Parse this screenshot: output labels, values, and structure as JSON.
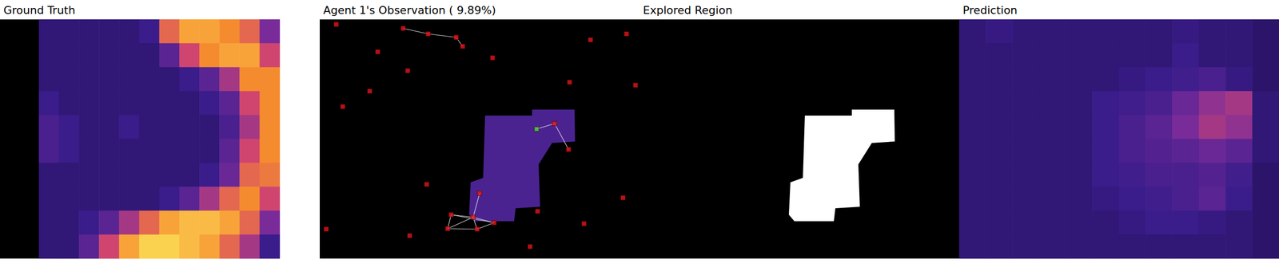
{
  "chart_data": [
    {
      "type": "heatmap",
      "title": "Ground Truth",
      "tick_labels": false,
      "value_range": [
        0,
        1
      ],
      "cells": [
        [
          0.15,
          0.15,
          0.15,
          0.15,
          0.15,
          0.2,
          0.7,
          0.85,
          0.85,
          0.8,
          0.7,
          0.4
        ],
        [
          0.15,
          0.15,
          0.15,
          0.15,
          0.15,
          0.15,
          0.3,
          0.6,
          0.8,
          0.85,
          0.85,
          0.6
        ],
        [
          0.15,
          0.15,
          0.15,
          0.15,
          0.15,
          0.15,
          0.15,
          0.2,
          0.3,
          0.5,
          0.8,
          0.8
        ],
        [
          0.2,
          0.15,
          0.15,
          0.15,
          0.15,
          0.15,
          0.15,
          0.15,
          0.2,
          0.3,
          0.6,
          0.8
        ],
        [
          0.25,
          0.2,
          0.15,
          0.15,
          0.2,
          0.15,
          0.15,
          0.15,
          0.15,
          0.25,
          0.5,
          0.8
        ],
        [
          0.25,
          0.2,
          0.15,
          0.15,
          0.15,
          0.15,
          0.15,
          0.15,
          0.15,
          0.3,
          0.6,
          0.8
        ],
        [
          0.15,
          0.15,
          0.15,
          0.15,
          0.15,
          0.15,
          0.15,
          0.15,
          0.2,
          0.35,
          0.7,
          0.75
        ],
        [
          0.15,
          0.15,
          0.15,
          0.15,
          0.15,
          0.15,
          0.2,
          0.3,
          0.5,
          0.7,
          0.8,
          0.6
        ],
        [
          0.15,
          0.15,
          0.2,
          0.3,
          0.5,
          0.7,
          0.85,
          0.9,
          0.9,
          0.85,
          0.7,
          0.4
        ],
        [
          0.15,
          0.15,
          0.3,
          0.6,
          0.85,
          0.95,
          0.95,
          0.9,
          0.85,
          0.7,
          0.5,
          0.2
        ]
      ]
    },
    {
      "type": "scatter",
      "title": "Agent 1's Observation ( 9.89%)",
      "tick_labels": false,
      "xlim": [
        0,
        640
      ],
      "ylim": [
        0,
        480
      ],
      "x": [
        33,
        167,
        217,
        273,
        286,
        116,
        346,
        542,
        614,
        176,
        500,
        632,
        100,
        46,
        470,
        434,
        498,
        214,
        320,
        607,
        263,
        307,
        349,
        256,
        315,
        436,
        529,
        13,
        180,
        421
      ],
      "y": [
        10,
        18,
        29,
        36,
        54,
        65,
        77,
        41,
        29,
        103,
        126,
        132,
        144,
        175,
        209,
        220,
        261,
        331,
        349,
        358,
        392,
        397,
        408,
        420,
        421,
        385,
        410,
        421,
        434,
        456
      ],
      "colors": [
        "#e0161b",
        "#e0161b",
        "#e0161b",
        "#e0161b",
        "#e0161b",
        "#e0161b",
        "#e0161b",
        "#e0161b",
        "#e0161b",
        "#e0161b",
        "#e0161b",
        "#e0161b",
        "#e0161b",
        "#e0161b",
        "#e0161b",
        "#3ddc3d",
        "#e0161b",
        "#e0161b",
        "#e0161b",
        "#e0161b",
        "#e0161b",
        "#e0161b",
        "#e0161b",
        "#e0161b",
        "#e0161b",
        "#e0161b",
        "#e0161b",
        "#e0161b",
        "#e0161b",
        "#e0161b"
      ],
      "links": [
        [
          1,
          2
        ],
        [
          2,
          3
        ],
        [
          3,
          4
        ],
        [
          14,
          15
        ],
        [
          14,
          16
        ],
        [
          18,
          21
        ],
        [
          20,
          21
        ],
        [
          21,
          22
        ],
        [
          23,
          21
        ],
        [
          24,
          21
        ],
        [
          20,
          23
        ],
        [
          23,
          24
        ],
        [
          24,
          22
        ],
        [
          20,
          22
        ]
      ],
      "region": [
        [
          331,
          193
        ],
        [
          425,
          193
        ],
        [
          425,
          181
        ],
        [
          510,
          181
        ],
        [
          511,
          245
        ],
        [
          465,
          248
        ],
        [
          438,
          291
        ],
        [
          441,
          376
        ],
        [
          392,
          379
        ],
        [
          389,
          405
        ],
        [
          310,
          405
        ],
        [
          299,
          392
        ],
        [
          302,
          327
        ],
        [
          327,
          318
        ]
      ]
    },
    {
      "type": "region",
      "title": "Explored Region",
      "tick_labels": false,
      "xlim": [
        0,
        640
      ],
      "ylim": [
        0,
        480
      ],
      "region": [
        [
          331,
          193
        ],
        [
          425,
          193
        ],
        [
          425,
          181
        ],
        [
          510,
          181
        ],
        [
          511,
          245
        ],
        [
          465,
          248
        ],
        [
          438,
          291
        ],
        [
          441,
          376
        ],
        [
          392,
          379
        ],
        [
          389,
          405
        ],
        [
          310,
          405
        ],
        [
          299,
          392
        ],
        [
          302,
          327
        ],
        [
          327,
          318
        ]
      ]
    },
    {
      "type": "heatmap",
      "title": "Prediction",
      "tick_labels": false,
      "value_range": [
        0,
        1
      ],
      "cells": [
        [
          0.15,
          0.18,
          0.15,
          0.15,
          0.15,
          0.15,
          0.15,
          0.15,
          0.18,
          0.15,
          0.15,
          0.12
        ],
        [
          0.15,
          0.15,
          0.15,
          0.15,
          0.15,
          0.15,
          0.15,
          0.15,
          0.2,
          0.15,
          0.15,
          0.12
        ],
        [
          0.15,
          0.15,
          0.15,
          0.15,
          0.15,
          0.15,
          0.18,
          0.2,
          0.22,
          0.25,
          0.18,
          0.12
        ],
        [
          0.15,
          0.15,
          0.15,
          0.15,
          0.15,
          0.2,
          0.22,
          0.25,
          0.35,
          0.45,
          0.5,
          0.15
        ],
        [
          0.15,
          0.15,
          0.15,
          0.15,
          0.15,
          0.2,
          0.25,
          0.3,
          0.4,
          0.5,
          0.45,
          0.15
        ],
        [
          0.15,
          0.15,
          0.15,
          0.15,
          0.15,
          0.2,
          0.25,
          0.28,
          0.3,
          0.35,
          0.3,
          0.15
        ],
        [
          0.15,
          0.15,
          0.15,
          0.15,
          0.15,
          0.2,
          0.22,
          0.25,
          0.25,
          0.28,
          0.22,
          0.12
        ],
        [
          0.15,
          0.15,
          0.15,
          0.15,
          0.15,
          0.18,
          0.2,
          0.22,
          0.25,
          0.3,
          0.2,
          0.12
        ],
        [
          0.15,
          0.15,
          0.15,
          0.15,
          0.15,
          0.15,
          0.18,
          0.2,
          0.2,
          0.18,
          0.15,
          0.12
        ],
        [
          0.15,
          0.15,
          0.15,
          0.15,
          0.15,
          0.15,
          0.15,
          0.15,
          0.15,
          0.15,
          0.15,
          0.12
        ]
      ]
    }
  ]
}
